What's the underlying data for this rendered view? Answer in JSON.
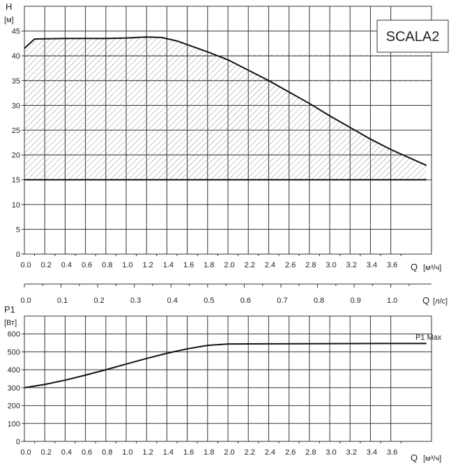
{
  "model_label": "SCALA2",
  "colors": {
    "grid": "#333333",
    "curve": "#111111",
    "hatch": "#777777",
    "background": "#ffffff"
  },
  "chart_data": [
    {
      "type": "area",
      "ylabel": "H",
      "yunit": "[м]",
      "xlabel": "Q",
      "xunit": "[м³/ч]",
      "xlim": [
        0,
        4.0
      ],
      "ylim": [
        0,
        50
      ],
      "xticks": [
        0.0,
        0.2,
        0.4,
        0.6,
        0.8,
        1.0,
        1.2,
        1.4,
        1.6,
        1.8,
        2.0,
        2.2,
        2.4,
        2.6,
        2.8,
        3.0,
        3.2,
        3.4,
        3.6
      ],
      "xtick_labels": [
        "0.0",
        "0.2",
        "0.4",
        "0.6",
        "0.8",
        "1.0",
        "1.2",
        "1.4",
        "1.6",
        "1.8",
        "2.0",
        "2.2",
        "2.4",
        "2.6",
        "2.8",
        "3.0",
        "3.2",
        "3.4",
        "3.6"
      ],
      "yticks": [
        0,
        5,
        10,
        15,
        20,
        25,
        30,
        35,
        40,
        45
      ],
      "ytick_labels": [
        "0",
        "5",
        "10",
        "15",
        "20",
        "25",
        "30",
        "35",
        "40",
        "45"
      ],
      "grid": true,
      "series": [
        {
          "style": "curve",
          "x": [
            0.0,
            0.1,
            0.4,
            0.8,
            1.0,
            1.2,
            1.35,
            1.5,
            1.8,
            2.0,
            2.4,
            2.8,
            3.0,
            3.4,
            3.6,
            3.95
          ],
          "y": [
            41.5,
            43.4,
            43.5,
            43.5,
            43.6,
            43.8,
            43.7,
            43.0,
            40.8,
            39.2,
            35.0,
            30.4,
            27.9,
            23.2,
            21.1,
            17.9
          ]
        },
        {
          "style": "minimum-head-line",
          "x": [
            0.0,
            3.95
          ],
          "y": [
            15.0,
            15.0
          ]
        },
        {
          "style": "hatched-region",
          "between": [
            "curve",
            "minimum-head-line"
          ]
        }
      ]
    },
    {
      "type": "axis",
      "xlabel": "Q",
      "xunit": "[л/с]",
      "xlim": [
        0,
        1.1111
      ],
      "xticks": [
        0.0,
        0.1,
        0.2,
        0.3,
        0.4,
        0.5,
        0.6,
        0.7,
        0.8,
        0.9,
        1.0
      ],
      "xtick_labels": [
        "0.0",
        "0.1",
        "0.2",
        "0.3",
        "0.4",
        "0.5",
        "0.6",
        "0.7",
        "0.8",
        "0.9",
        "1.0"
      ]
    },
    {
      "type": "line",
      "ylabel": "P1",
      "yunit": "[Вт]",
      "xlabel": "Q",
      "xunit": "[м³/ч]",
      "xlim": [
        0,
        4.0
      ],
      "ylim": [
        0,
        700
      ],
      "xticks": [
        0.0,
        0.2,
        0.4,
        0.6,
        0.8,
        1.0,
        1.2,
        1.4,
        1.6,
        1.8,
        2.0,
        2.2,
        2.4,
        2.6,
        2.8,
        3.0,
        3.2,
        3.4,
        3.6
      ],
      "xtick_labels": [
        "0.0",
        "0.2",
        "0.4",
        "0.6",
        "0.8",
        "1.0",
        "1.2",
        "1.4",
        "1.6",
        "1.8",
        "2.0",
        "2.2",
        "2.4",
        "2.6",
        "2.8",
        "3.0",
        "3.2",
        "3.4",
        "3.6"
      ],
      "yticks": [
        0,
        100,
        200,
        300,
        400,
        500,
        600
      ],
      "ytick_labels": [
        "0",
        "100",
        "200",
        "300",
        "400",
        "500",
        "600"
      ],
      "grid": true,
      "series": [
        {
          "name": "P1 Max",
          "x": [
            0.0,
            0.2,
            0.4,
            0.6,
            0.8,
            1.0,
            1.2,
            1.4,
            1.6,
            1.8,
            2.0,
            2.5,
            3.0,
            3.5,
            3.95
          ],
          "y": [
            300,
            318,
            342,
            370,
            400,
            432,
            463,
            492,
            517,
            536,
            544,
            545,
            546,
            547,
            547
          ]
        }
      ]
    }
  ]
}
